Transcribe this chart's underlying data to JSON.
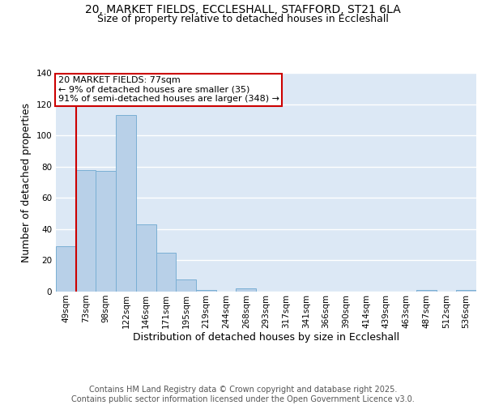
{
  "title_line1": "20, MARKET FIELDS, ECCLESHALL, STAFFORD, ST21 6LA",
  "title_line2": "Size of property relative to detached houses in Eccleshall",
  "xlabel": "Distribution of detached houses by size in Eccleshall",
  "ylabel": "Number of detached properties",
  "categories": [
    "49sqm",
    "73sqm",
    "98sqm",
    "122sqm",
    "146sqm",
    "171sqm",
    "195sqm",
    "219sqm",
    "244sqm",
    "268sqm",
    "293sqm",
    "317sqm",
    "341sqm",
    "366sqm",
    "390sqm",
    "414sqm",
    "439sqm",
    "463sqm",
    "487sqm",
    "512sqm",
    "536sqm"
  ],
  "values": [
    29,
    78,
    77,
    113,
    43,
    25,
    8,
    1,
    0,
    2,
    0,
    0,
    0,
    0,
    0,
    0,
    0,
    0,
    1,
    0,
    1
  ],
  "bar_color": "#b8d0e8",
  "bar_edge_color": "#7aafd4",
  "bg_color": "#dce8f5",
  "grid_color": "#ffffff",
  "annotation_box_text": "20 MARKET FIELDS: 77sqm\n← 9% of detached houses are smaller (35)\n91% of semi-detached houses are larger (348) →",
  "annotation_box_color": "#cc0000",
  "vline_color": "#cc0000",
  "ylim": [
    0,
    140
  ],
  "yticks": [
    0,
    20,
    40,
    60,
    80,
    100,
    120,
    140
  ],
  "footer_text": "Contains HM Land Registry data © Crown copyright and database right 2025.\nContains public sector information licensed under the Open Government Licence v3.0.",
  "title_fontsize": 10,
  "subtitle_fontsize": 9,
  "axis_label_fontsize": 9,
  "tick_fontsize": 7.5,
  "annotation_fontsize": 8,
  "footer_fontsize": 7
}
